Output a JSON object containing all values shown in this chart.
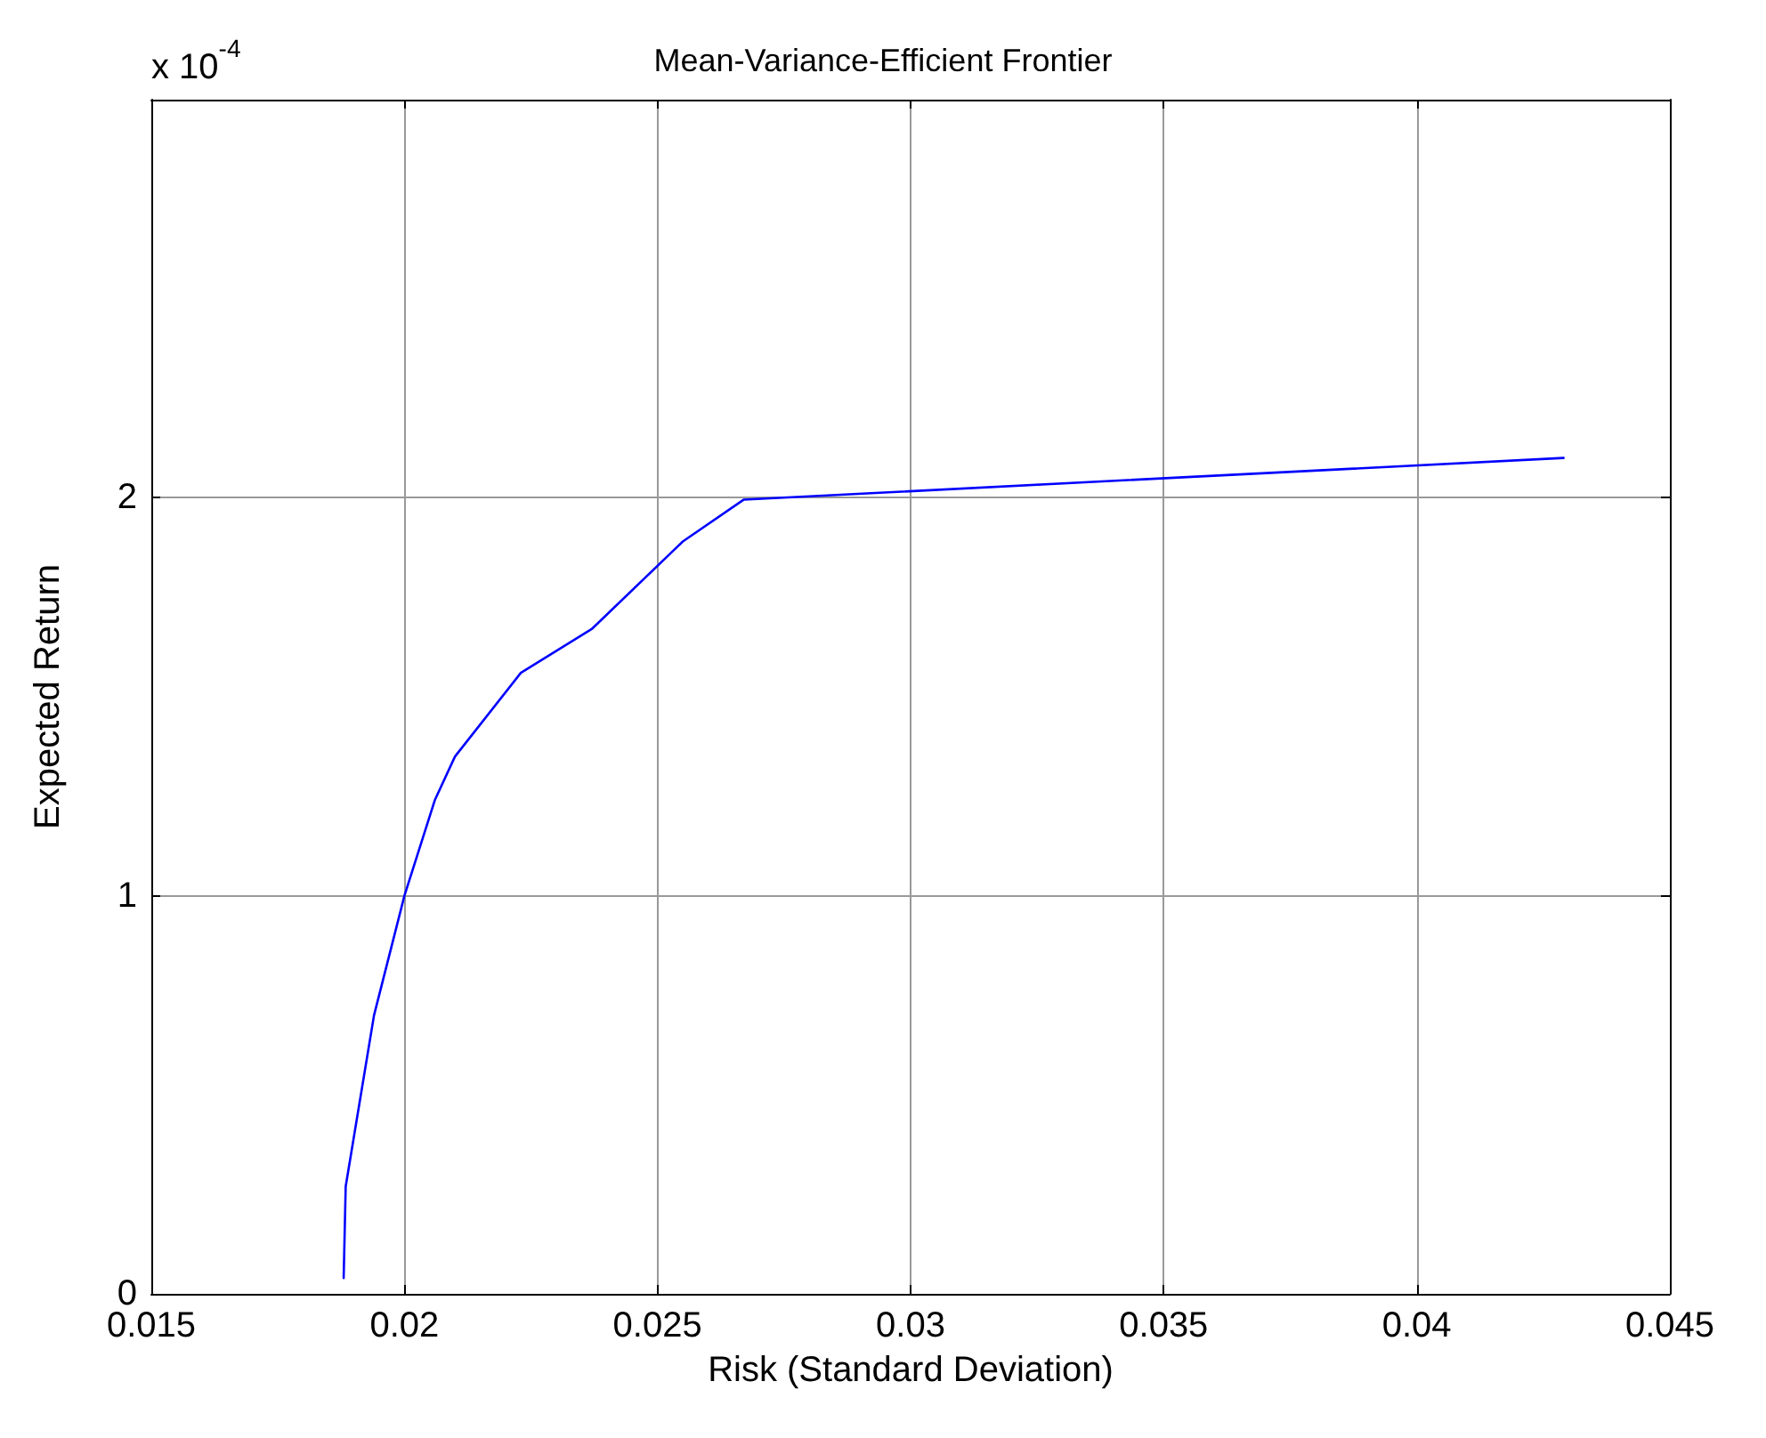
{
  "chart_data": {
    "type": "line",
    "title": "Mean-Variance-Efficient Frontier",
    "xlabel": "Risk (Standard Deviation)",
    "ylabel": "Expected Return",
    "annotations": [
      "x 10$^{-4}$"
    ],
    "x": [
      0.0188,
      0.01884,
      0.0194,
      0.02,
      0.0206,
      0.021,
      0.0223,
      0.0237,
      0.0255,
      0.0267,
      0.0429
    ],
    "series": [
      {
        "color": "#0000ff",
        "values": [
          0.04,
          0.27,
          0.7,
          1.0,
          1.24,
          1.35,
          1.56,
          1.67,
          1.89,
          1.995,
          2.1
        ]
      }
    ],
    "xlim": [
      0.015,
      0.045
    ],
    "xticks": [
      0.015,
      0.02,
      0.025,
      0.03,
      0.035,
      0.04,
      0.045
    ],
    "ylim": [
      0,
      3
    ],
    "yticks": [
      0,
      1,
      2,
      {
        "value": 3,
        "label": null
      }
    ],
    "grid": true,
    "marker": "none",
    "line_style": "solid"
  }
}
